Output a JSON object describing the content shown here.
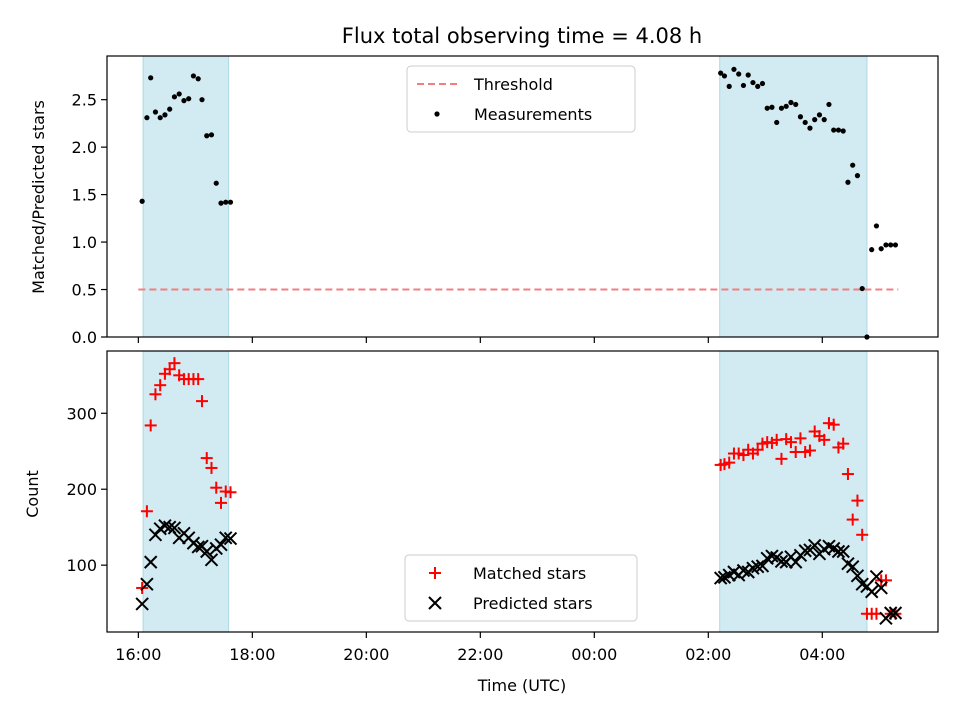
{
  "title": "Flux total observing time = 4.08 h",
  "colors": {
    "span": "#add8e6",
    "threshold": "#f08080",
    "matched": "#ff0000",
    "predicted": "#000000",
    "measurement": "#000000"
  },
  "chart_data": [
    {
      "type": "scatter",
      "title": "Flux total observing time = 4.08 h",
      "xlabel": "",
      "ylabel": "Matched/Predicted stars",
      "ylim": [
        0,
        2.96
      ],
      "yticks": [
        "0.0",
        "0.5",
        "1.0",
        "1.5",
        "2.0",
        "2.5"
      ],
      "legend": {
        "placement": "top-center",
        "entries": [
          "Threshold",
          "Measurements"
        ]
      },
      "threshold": {
        "name": "Threshold",
        "value": 0.5,
        "x_range": [
          "16:00",
          "05:20"
        ]
      },
      "observing_spans": [
        [
          "16:05",
          "17:35"
        ],
        [
          "02:12",
          "04:47"
        ]
      ],
      "series": [
        {
          "name": "Measurements",
          "x": [
            "16:04",
            "16:09",
            "16:13",
            "16:18",
            "16:23",
            "16:28",
            "16:33",
            "16:38",
            "16:43",
            "16:48",
            "16:53",
            "16:58",
            "17:03",
            "17:07",
            "17:12",
            "17:17",
            "17:22",
            "17:27",
            "17:32",
            "17:37",
            "02:13",
            "02:17",
            "02:22",
            "02:27",
            "02:32",
            "02:37",
            "02:42",
            "02:47",
            "02:52",
            "02:57",
            "03:02",
            "03:07",
            "03:12",
            "03:17",
            "03:22",
            "03:27",
            "03:32",
            "03:37",
            "03:42",
            "03:47",
            "03:52",
            "03:57",
            "04:02",
            "04:07",
            "04:12",
            "04:17",
            "04:22",
            "04:27",
            "04:32",
            "04:37",
            "04:42",
            "04:47",
            "04:52",
            "04:57",
            "05:02",
            "05:07",
            "05:12",
            "05:17"
          ],
          "y": [
            1.43,
            2.31,
            2.73,
            2.37,
            2.31,
            2.34,
            2.4,
            2.53,
            2.56,
            2.49,
            2.51,
            2.75,
            2.72,
            2.5,
            2.12,
            2.13,
            1.62,
            1.41,
            1.42,
            1.42,
            2.78,
            2.75,
            2.64,
            2.82,
            2.77,
            2.65,
            2.76,
            2.68,
            2.64,
            2.67,
            2.41,
            2.42,
            2.26,
            2.41,
            2.43,
            2.47,
            2.45,
            2.32,
            2.26,
            2.2,
            2.29,
            2.34,
            2.29,
            2.45,
            2.18,
            2.18,
            2.17,
            1.63,
            1.81,
            1.7,
            0.51,
            0.0,
            0.92,
            1.17,
            0.93,
            0.97,
            0.97,
            0.97
          ]
        }
      ]
    },
    {
      "type": "scatter",
      "xlabel": "Time (UTC)",
      "ylabel": "Count",
      "ylim": [
        12,
        382
      ],
      "yticks": [
        "100",
        "200",
        "300"
      ],
      "xticks": [
        "16:00",
        "18:00",
        "20:00",
        "22:00",
        "00:00",
        "02:00",
        "04:00"
      ],
      "legend": {
        "placement": "bottom-center",
        "entries": [
          "Matched stars",
          "Predicted stars"
        ]
      },
      "observing_spans": [
        [
          "16:05",
          "17:35"
        ],
        [
          "02:12",
          "04:47"
        ]
      ],
      "series": [
        {
          "name": "Matched stars",
          "x": [
            "16:04",
            "16:09",
            "16:13",
            "16:18",
            "16:23",
            "16:28",
            "16:33",
            "16:38",
            "16:43",
            "16:48",
            "16:53",
            "16:58",
            "17:03",
            "17:07",
            "17:12",
            "17:17",
            "17:22",
            "17:27",
            "17:32",
            "17:37",
            "02:13",
            "02:17",
            "02:22",
            "02:27",
            "02:32",
            "02:37",
            "02:42",
            "02:47",
            "02:52",
            "02:57",
            "03:02",
            "03:07",
            "03:12",
            "03:17",
            "03:22",
            "03:27",
            "03:32",
            "03:37",
            "03:42",
            "03:47",
            "03:52",
            "03:57",
            "04:02",
            "04:07",
            "04:12",
            "04:17",
            "04:22",
            "04:27",
            "04:32",
            "04:37",
            "04:42",
            "04:47",
            "04:52",
            "04:57",
            "05:02",
            "05:07",
            "05:12",
            "05:17"
          ],
          "y": [
            70,
            171,
            284,
            325,
            337,
            352,
            358,
            366,
            350,
            345,
            345,
            345,
            345,
            316,
            241,
            228,
            202,
            182,
            197,
            196,
            232,
            233,
            235,
            247,
            247,
            245,
            252,
            247,
            252,
            260,
            262,
            261,
            265,
            240,
            266,
            262,
            249,
            267,
            249,
            251,
            276,
            270,
            265,
            287,
            285,
            255,
            260,
            220,
            160,
            185,
            140,
            36,
            36,
            36,
            80,
            80,
            36,
            36
          ]
        },
        {
          "name": "Predicted stars",
          "x": [
            "16:04",
            "16:09",
            "16:13",
            "16:18",
            "16:23",
            "16:28",
            "16:33",
            "16:38",
            "16:43",
            "16:48",
            "16:53",
            "16:58",
            "17:03",
            "17:07",
            "17:12",
            "17:17",
            "17:22",
            "17:27",
            "17:32",
            "17:37",
            "02:13",
            "02:17",
            "02:22",
            "02:27",
            "02:32",
            "02:37",
            "02:42",
            "02:47",
            "02:52",
            "02:57",
            "03:02",
            "03:07",
            "03:12",
            "03:17",
            "03:22",
            "03:27",
            "03:32",
            "03:37",
            "03:42",
            "03:47",
            "03:52",
            "03:57",
            "04:02",
            "04:07",
            "04:12",
            "04:17",
            "04:22",
            "04:27",
            "04:32",
            "04:37",
            "04:42",
            "04:47",
            "04:52",
            "04:57",
            "05:02",
            "05:07",
            "05:12",
            "05:17"
          ],
          "y": [
            49,
            75,
            104,
            140,
            148,
            152,
            150,
            149,
            136,
            142,
            136,
            129,
            124,
            125,
            118,
            107,
            122,
            127,
            136,
            135,
            83,
            84,
            87,
            91,
            87,
            93,
            91,
            96,
            98,
            99,
            109,
            112,
            110,
            105,
            104,
            111,
            104,
            113,
            119,
            120,
            126,
            115,
            121,
            125,
            122,
            118,
            118,
            102,
            98,
            86,
            75,
            72,
            65,
            85,
            70,
            30,
            37,
            37
          ]
        }
      ]
    }
  ]
}
